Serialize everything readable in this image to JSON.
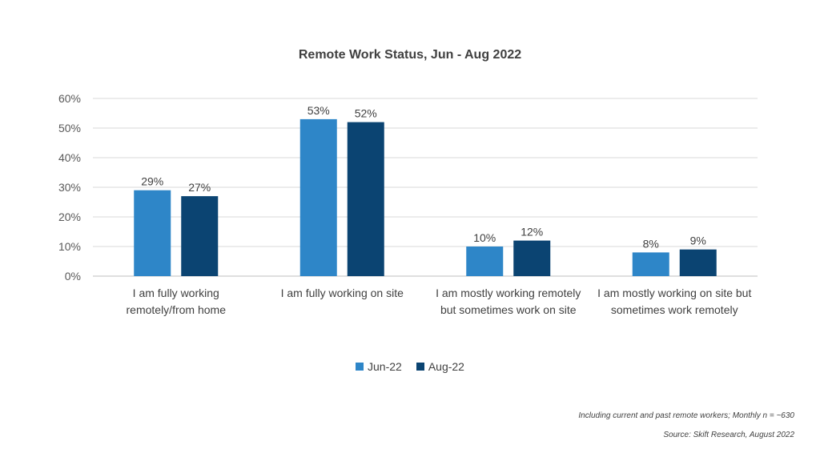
{
  "chart_data": {
    "type": "bar",
    "title": "Remote Work Status, Jun - Aug 2022",
    "categories": [
      [
        "I am fully working",
        "remotely/from home"
      ],
      [
        "I am fully working on site"
      ],
      [
        "I am mostly working remotely",
        "but sometimes work on site"
      ],
      [
        "I am mostly working on site but",
        "sometimes work remotely"
      ]
    ],
    "series": [
      {
        "name": "Jun-22",
        "values": [
          29,
          53,
          10,
          8
        ],
        "labels": [
          "29%",
          "53%",
          "10%",
          "8%"
        ],
        "color": "#2E86C8"
      },
      {
        "name": "Aug-22",
        "values": [
          27,
          52,
          12,
          9
        ],
        "labels": [
          "27%",
          "52%",
          "12%",
          "9%"
        ],
        "color": "#0B4472"
      }
    ],
    "ylim": [
      0,
      60
    ],
    "yticks": [
      "0%",
      "10%",
      "20%",
      "30%",
      "40%",
      "50%",
      "60%"
    ],
    "grid": true,
    "legend_position": "bottom"
  },
  "notes": {
    "sample": "Including current and past remote workers; Monthly n = ~630",
    "source": "Source: Skift Research, August 2022"
  }
}
